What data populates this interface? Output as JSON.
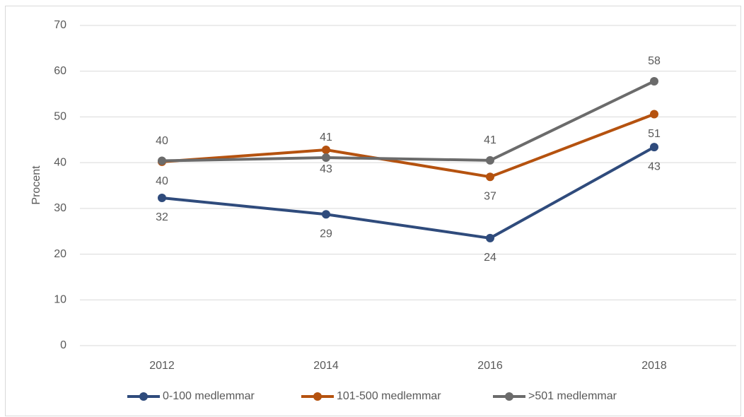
{
  "chart_data": {
    "type": "line",
    "y_label": "Procent",
    "categories": [
      "2012",
      "2014",
      "2016",
      "2018"
    ],
    "series": [
      {
        "name": "0-100 medlemmar",
        "color": "#2f4b7c",
        "values": [
          32.3,
          28.7,
          23.5,
          43.4
        ],
        "value_labels": [
          "32",
          "29",
          "24",
          "43"
        ]
      },
      {
        "name": "101-500 medlemmar",
        "color": "#b5520f",
        "values": [
          40.2,
          42.8,
          36.9,
          50.6
        ],
        "value_labels": [
          "40",
          "43",
          "37",
          "51"
        ]
      },
      {
        "name": ">501 medlemmar",
        "color": "#6b6b6b",
        "values": [
          40.4,
          41.1,
          40.5,
          57.8
        ],
        "value_labels": [
          "40",
          "41",
          "41",
          "58"
        ]
      }
    ],
    "ylim": [
      0,
      70
    ],
    "yticks": [
      0,
      10,
      20,
      30,
      40,
      50,
      60,
      70
    ],
    "grid": true,
    "legend": "bottom"
  }
}
